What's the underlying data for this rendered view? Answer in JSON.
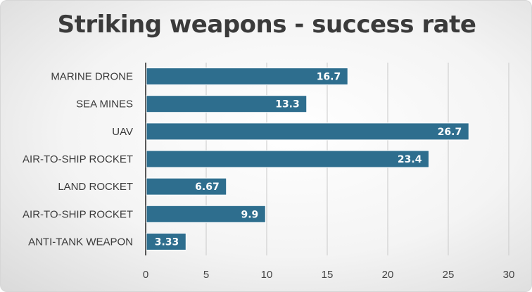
{
  "chart_data": {
    "type": "bar",
    "orientation": "horizontal",
    "title": "Striking weapons - success rate",
    "categories": [
      "MARINE DRONE",
      "SEA MINES",
      "UAV",
      "AIR-TO-SHIP ROCKET",
      "LAND ROCKET",
      "AIR-TO-SHIP ROCKET",
      "ANTI-TANK WEAPON"
    ],
    "values": [
      16.7,
      13.3,
      26.7,
      23.4,
      6.67,
      9.9,
      3.33
    ],
    "data_labels": [
      "16.7",
      "13.3",
      "26.7",
      "23.4",
      "6.67",
      "9.9",
      "3.33"
    ],
    "xlim": [
      0,
      30
    ],
    "xticks": [
      0,
      5,
      10,
      15,
      20,
      25,
      30
    ],
    "grid": true,
    "legend": "none",
    "bar_color": "#2e6e8e",
    "xlabel": "",
    "ylabel": ""
  }
}
